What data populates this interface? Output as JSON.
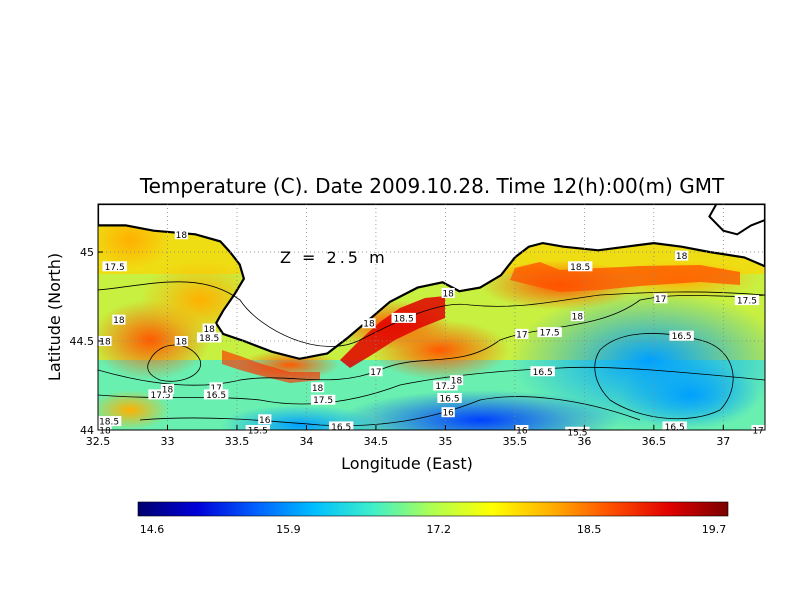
{
  "chart_data": {
    "type": "heatmap",
    "title": "Temperature (C). Date 2009.10.28. Time 12(h):00(m) GMT",
    "xlabel": "Longitude (East)",
    "ylabel": "Latitude (North)",
    "xlim": [
      32.5,
      37.3
    ],
    "ylim": [
      44.0,
      45.27
    ],
    "x_ticks": [
      "32.5",
      "33",
      "33.5",
      "34",
      "34.5",
      "35",
      "35.5",
      "36",
      "36.5",
      "37"
    ],
    "y_ticks": [
      "44",
      "44.5",
      "45"
    ],
    "grid": true,
    "annotation": "Z = 2.5 m",
    "colorbar": {
      "min": 14.6,
      "max": 19.7,
      "tick_labels": [
        "14.6",
        "15.9",
        "17.2",
        "18.5",
        "19.7"
      ],
      "colors": [
        "#00006e",
        "#0000d8",
        "#0060ff",
        "#00c0ff",
        "#40f0c8",
        "#b0ff50",
        "#ffff00",
        "#ffb000",
        "#ff5000",
        "#e00000",
        "#7a0000"
      ]
    },
    "contour_labels": [
      {
        "lon": 32.62,
        "lat": 44.92,
        "text": "17.5"
      },
      {
        "lon": 32.65,
        "lat": 44.62,
        "text": "18"
      },
      {
        "lon": 32.55,
        "lat": 44.5,
        "text": "18"
      },
      {
        "lon": 33.1,
        "lat": 45.1,
        "text": "18"
      },
      {
        "lon": 33.1,
        "lat": 44.5,
        "text": "18"
      },
      {
        "lon": 33.3,
        "lat": 44.57,
        "text": "18"
      },
      {
        "lon": 33.3,
        "lat": 44.52,
        "text": "18.5"
      },
      {
        "lon": 32.95,
        "lat": 44.2,
        "text": "17.5"
      },
      {
        "lon": 33.0,
        "lat": 44.23,
        "text": "18"
      },
      {
        "lon": 33.35,
        "lat": 44.24,
        "text": "17"
      },
      {
        "lon": 33.35,
        "lat": 44.2,
        "text": "16.5"
      },
      {
        "lon": 32.58,
        "lat": 44.05,
        "text": "18.5"
      },
      {
        "lon": 32.55,
        "lat": 44.0,
        "text": "18"
      },
      {
        "lon": 33.7,
        "lat": 44.06,
        "text": "16"
      },
      {
        "lon": 33.65,
        "lat": 44.0,
        "text": "15.5"
      },
      {
        "lon": 34.08,
        "lat": 44.24,
        "text": "18"
      },
      {
        "lon": 34.12,
        "lat": 44.17,
        "text": "17.5"
      },
      {
        "lon": 34.25,
        "lat": 44.02,
        "text": "16.5"
      },
      {
        "lon": 34.45,
        "lat": 44.6,
        "text": "18"
      },
      {
        "lon": 34.7,
        "lat": 44.63,
        "text": "18.5"
      },
      {
        "lon": 34.5,
        "lat": 44.33,
        "text": "17"
      },
      {
        "lon": 35.02,
        "lat": 44.77,
        "text": "18"
      },
      {
        "lon": 35.0,
        "lat": 44.25,
        "text": "17.5"
      },
      {
        "lon": 35.08,
        "lat": 44.28,
        "text": "18"
      },
      {
        "lon": 35.03,
        "lat": 44.18,
        "text": "16.5"
      },
      {
        "lon": 35.02,
        "lat": 44.1,
        "text": "16"
      },
      {
        "lon": 35.55,
        "lat": 44.54,
        "text": "17"
      },
      {
        "lon": 35.75,
        "lat": 44.55,
        "text": "17.5"
      },
      {
        "lon": 35.95,
        "lat": 44.64,
        "text": "18"
      },
      {
        "lon": 35.7,
        "lat": 44.33,
        "text": "16.5"
      },
      {
        "lon": 35.55,
        "lat": 44.0,
        "text": "16"
      },
      {
        "lon": 35.95,
        "lat": 43.99,
        "text": "15.5"
      },
      {
        "lon": 35.97,
        "lat": 44.92,
        "text": "18.5"
      },
      {
        "lon": 36.7,
        "lat": 44.98,
        "text": "18"
      },
      {
        "lon": 36.55,
        "lat": 44.74,
        "text": "17"
      },
      {
        "lon": 37.17,
        "lat": 44.73,
        "text": "17.5"
      },
      {
        "lon": 36.7,
        "lat": 44.53,
        "text": "16.5"
      },
      {
        "lon": 36.65,
        "lat": 44.02,
        "text": "16.5"
      },
      {
        "lon": 37.25,
        "lat": 44.0,
        "text": "17"
      }
    ],
    "land_mask_outline": [
      [
        32.5,
        45.27
      ],
      [
        32.5,
        45.15
      ],
      [
        32.7,
        45.15
      ],
      [
        32.9,
        45.12
      ],
      [
        33.2,
        45.1
      ],
      [
        33.38,
        45.06
      ],
      [
        33.45,
        45.0
      ],
      [
        33.52,
        44.93
      ],
      [
        33.55,
        44.85
      ],
      [
        33.48,
        44.76
      ],
      [
        33.4,
        44.67
      ],
      [
        33.35,
        44.6
      ],
      [
        33.4,
        44.54
      ],
      [
        33.55,
        44.5
      ],
      [
        33.75,
        44.44
      ],
      [
        33.95,
        44.4
      ],
      [
        34.15,
        44.43
      ],
      [
        34.3,
        44.52
      ],
      [
        34.45,
        44.62
      ],
      [
        34.6,
        44.72
      ],
      [
        34.8,
        44.8
      ],
      [
        34.98,
        44.83
      ],
      [
        35.1,
        44.78
      ],
      [
        35.25,
        44.8
      ],
      [
        35.4,
        44.87
      ],
      [
        35.5,
        44.97
      ],
      [
        35.6,
        45.03
      ],
      [
        35.7,
        45.05
      ],
      [
        35.85,
        45.03
      ],
      [
        36.1,
        45.01
      ],
      [
        36.3,
        45.03
      ],
      [
        36.5,
        45.05
      ],
      [
        36.7,
        45.03
      ],
      [
        36.9,
        45.0
      ],
      [
        37.15,
        44.97
      ],
      [
        37.3,
        44.92
      ],
      [
        37.3,
        45.27
      ]
    ],
    "secondary_coast": [
      [
        36.95,
        45.27
      ],
      [
        36.9,
        45.2
      ],
      [
        37.0,
        45.12
      ],
      [
        37.1,
        45.1
      ],
      [
        37.2,
        45.15
      ],
      [
        37.3,
        45.18
      ]
    ]
  }
}
